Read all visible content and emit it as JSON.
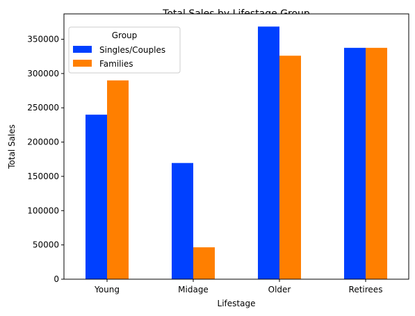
{
  "chart_data": {
    "type": "bar",
    "title": "Total Sales by Lifestage Group",
    "xlabel": "Lifestage",
    "ylabel": "Total Sales",
    "categories": [
      "Young",
      "Midage",
      "Older",
      "Retirees"
    ],
    "series": [
      {
        "name": "Singles/Couples",
        "color": "#0040ff",
        "values": [
          240000,
          169500,
          368500,
          337500
        ]
      },
      {
        "name": "Families",
        "color": "#ff7f00",
        "values": [
          290000,
          46500,
          326000,
          337500
        ]
      }
    ],
    "ylim": [
      0,
      387000
    ],
    "yticks": [
      0,
      50000,
      100000,
      150000,
      200000,
      250000,
      300000,
      350000
    ],
    "legend": {
      "title": "Group",
      "position": "top-left"
    },
    "grid": false
  }
}
